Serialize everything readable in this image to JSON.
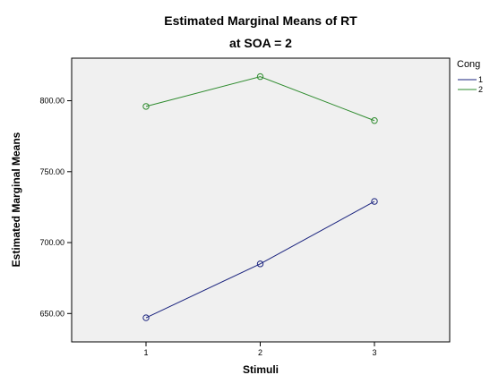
{
  "chart_data": {
    "type": "line",
    "title": "Estimated Marginal Means of RT",
    "subtitle": "at SOA = 2",
    "xlabel": "Stimuli",
    "ylabel": "Estimated Marginal Means",
    "categories": [
      "1",
      "2",
      "3"
    ],
    "ylim": [
      630,
      830
    ],
    "yticks": [
      650,
      700,
      750,
      800
    ],
    "ytick_labels": [
      "650.00",
      "700.00",
      "750.00",
      "800.00"
    ],
    "legend_title": "Cong",
    "legend_position": "right",
    "grid": false,
    "background_color": "#f0f0f0",
    "series": [
      {
        "name": "1",
        "color": "#1a237e",
        "values": [
          647,
          685,
          729
        ]
      },
      {
        "name": "2",
        "color": "#2e8b2e",
        "values": [
          796,
          817,
          786
        ]
      }
    ]
  }
}
